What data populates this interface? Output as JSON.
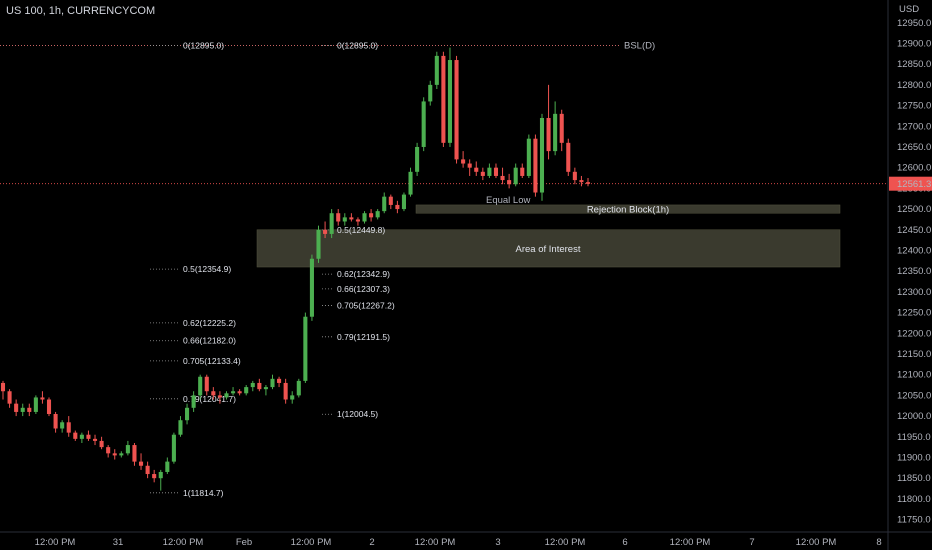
{
  "header": {
    "symbol_title": "US 100, 1h, CURRENCYCOM"
  },
  "colors": {
    "up": "#26a69a",
    "up_bright": "#4caf50",
    "down": "#ef5350",
    "zone": "#3a3a2e",
    "bsl": "#4caf50",
    "price_tag": "#ef5350",
    "fib": "#9a9a9a"
  },
  "chart_data": {
    "type": "candlestick",
    "currency": "USD",
    "y_ticks": [
      12950,
      12900,
      12850,
      12800,
      12750,
      12700,
      12650,
      12600,
      12550,
      12500,
      12450,
      12400,
      12350,
      12300,
      12250,
      12200,
      12150,
      12100,
      12050,
      12000,
      11950,
      11900,
      11850,
      11800,
      11750
    ],
    "ylim": [
      11720,
      13005
    ],
    "x_ticks": [
      "12:00 PM",
      "31",
      "12:00 PM",
      "Feb",
      "12:00 PM",
      "2",
      "12:00 PM",
      "3",
      "12:00 PM",
      "6",
      "12:00 PM",
      "7",
      "12:00 PM",
      "8"
    ],
    "current_price": "12561.3",
    "bsl_label": "BSL(D)",
    "bsl_value": 12895,
    "fib_left": [
      {
        "label": "0(12895.0)",
        "value": 12895.0
      },
      {
        "label": "0.5(12354.9)",
        "value": 12354.9
      },
      {
        "label": "0.62(12225.2)",
        "value": 12225.2
      },
      {
        "label": "0.66(12182.0)",
        "value": 12182.0
      },
      {
        "label": "0.705(12133.4)",
        "value": 12133.4
      },
      {
        "label": "0.79(12041.7)",
        "value": 12041.7
      },
      {
        "label": "1(11814.7)",
        "value": 11814.7
      }
    ],
    "fib_right": [
      {
        "label": "0(12895.0)",
        "value": 12895.0
      },
      {
        "label": "0.5(12449.8)",
        "value": 12449.8
      },
      {
        "label": "0.62(12342.9)",
        "value": 12342.9
      },
      {
        "label": "0.66(12307.3)",
        "value": 12307.3
      },
      {
        "label": "0.705(12267.2)",
        "value": 12267.2
      },
      {
        "label": "0.79(12191.5)",
        "value": 12191.5
      },
      {
        "label": "1(12004.5)",
        "value": 12004.5
      }
    ],
    "zones": [
      {
        "label": "Rejection Block(1h)",
        "top": 12510,
        "bottom": 12490
      },
      {
        "label": "Area of Interest",
        "top": 12450,
        "bottom": 12360
      }
    ],
    "equal_low_label": "Equal Low",
    "candles": [
      [
        12080,
        12085,
        12040,
        12060
      ],
      [
        12060,
        12065,
        12020,
        12030
      ],
      [
        12030,
        12040,
        12000,
        12010
      ],
      [
        12010,
        12030,
        12000,
        12020
      ],
      [
        12020,
        12030,
        12000,
        12010
      ],
      [
        12010,
        12050,
        12005,
        12045
      ],
      [
        12045,
        12060,
        12030,
        12040
      ],
      [
        12040,
        12045,
        12000,
        12005
      ],
      [
        12005,
        12010,
        11960,
        11970
      ],
      [
        11970,
        11990,
        11960,
        11985
      ],
      [
        11985,
        12000,
        11950,
        11960
      ],
      [
        11960,
        11965,
        11940,
        11945
      ],
      [
        11945,
        11960,
        11935,
        11955
      ],
      [
        11955,
        11965,
        11940,
        11945
      ],
      [
        11945,
        11955,
        11930,
        11940
      ],
      [
        11940,
        11950,
        11920,
        11925
      ],
      [
        11925,
        11930,
        11900,
        11910
      ],
      [
        11910,
        11920,
        11895,
        11905
      ],
      [
        11905,
        11915,
        11900,
        11910
      ],
      [
        11910,
        11940,
        11905,
        11930
      ],
      [
        11930,
        11935,
        11880,
        11890
      ],
      [
        11890,
        11910,
        11870,
        11880
      ],
      [
        11880,
        11890,
        11850,
        11860
      ],
      [
        11860,
        11870,
        11840,
        11850
      ],
      [
        11850,
        11870,
        11820,
        11865
      ],
      [
        11865,
        11900,
        11860,
        11890
      ],
      [
        11890,
        11960,
        11885,
        11955
      ],
      [
        11955,
        12000,
        11950,
        11990
      ],
      [
        11990,
        12030,
        11980,
        12020
      ],
      [
        12020,
        12060,
        12010,
        12050
      ],
      [
        12050,
        12100,
        12040,
        12095
      ],
      [
        12095,
        12100,
        12050,
        12060
      ],
      [
        12060,
        12070,
        12040,
        12050
      ],
      [
        12050,
        12060,
        12030,
        12045
      ],
      [
        12045,
        12060,
        12040,
        12055
      ],
      [
        12055,
        12070,
        12050,
        12060
      ],
      [
        12060,
        12065,
        12050,
        12055
      ],
      [
        12055,
        12075,
        12050,
        12070
      ],
      [
        12070,
        12085,
        12060,
        12080
      ],
      [
        12080,
        12090,
        12060,
        12065
      ],
      [
        12065,
        12075,
        12050,
        12070
      ],
      [
        12070,
        12100,
        12065,
        12090
      ],
      [
        12090,
        12095,
        12070,
        12080
      ],
      [
        12080,
        12090,
        12030,
        12040
      ],
      [
        12040,
        12060,
        12030,
        12050
      ],
      [
        12050,
        12090,
        12045,
        12085
      ],
      [
        12085,
        12250,
        12080,
        12240
      ],
      [
        12240,
        12390,
        12230,
        12380
      ],
      [
        12380,
        12460,
        12370,
        12450
      ],
      [
        12450,
        12470,
        12430,
        12440
      ],
      [
        12440,
        12500,
        12430,
        12490
      ],
      [
        12490,
        12500,
        12460,
        12470
      ],
      [
        12470,
        12490,
        12460,
        12480
      ],
      [
        12480,
        12490,
        12470,
        12475
      ],
      [
        12475,
        12480,
        12460,
        12470
      ],
      [
        12470,
        12495,
        12465,
        12490
      ],
      [
        12490,
        12500,
        12470,
        12480
      ],
      [
        12480,
        12500,
        12475,
        12495
      ],
      [
        12495,
        12540,
        12490,
        12530
      ],
      [
        12530,
        12535,
        12500,
        12510
      ],
      [
        12510,
        12520,
        12490,
        12500
      ],
      [
        12500,
        12540,
        12495,
        12535
      ],
      [
        12535,
        12600,
        12530,
        12590
      ],
      [
        12590,
        12660,
        12580,
        12650
      ],
      [
        12650,
        12770,
        12640,
        12760
      ],
      [
        12760,
        12810,
        12750,
        12800
      ],
      [
        12800,
        12880,
        12790,
        12870
      ],
      [
        12870,
        12880,
        12650,
        12660
      ],
      [
        12660,
        12890,
        12650,
        12860
      ],
      [
        12860,
        12870,
        12610,
        12620
      ],
      [
        12620,
        12640,
        12600,
        12610
      ],
      [
        12610,
        12620,
        12580,
        12600
      ],
      [
        12600,
        12615,
        12580,
        12590
      ],
      [
        12590,
        12600,
        12570,
        12580
      ],
      [
        12580,
        12610,
        12575,
        12600
      ],
      [
        12600,
        12610,
        12575,
        12580
      ],
      [
        12580,
        12600,
        12560,
        12570
      ],
      [
        12570,
        12585,
        12550,
        12560
      ],
      [
        12560,
        12610,
        12555,
        12600
      ],
      [
        12600,
        12610,
        12575,
        12580
      ],
      [
        12580,
        12680,
        12575,
        12670
      ],
      [
        12670,
        12680,
        12530,
        12540
      ],
      [
        12540,
        12730,
        12520,
        12720
      ],
      [
        12720,
        12800,
        12620,
        12640
      ],
      [
        12640,
        12760,
        12630,
        12730
      ],
      [
        12730,
        12740,
        12640,
        12660
      ],
      [
        12660,
        12670,
        12580,
        12590
      ],
      [
        12590,
        12600,
        12560,
        12570
      ],
      [
        12570,
        12580,
        12555,
        12565
      ],
      [
        12565,
        12575,
        12555,
        12561
      ]
    ]
  }
}
